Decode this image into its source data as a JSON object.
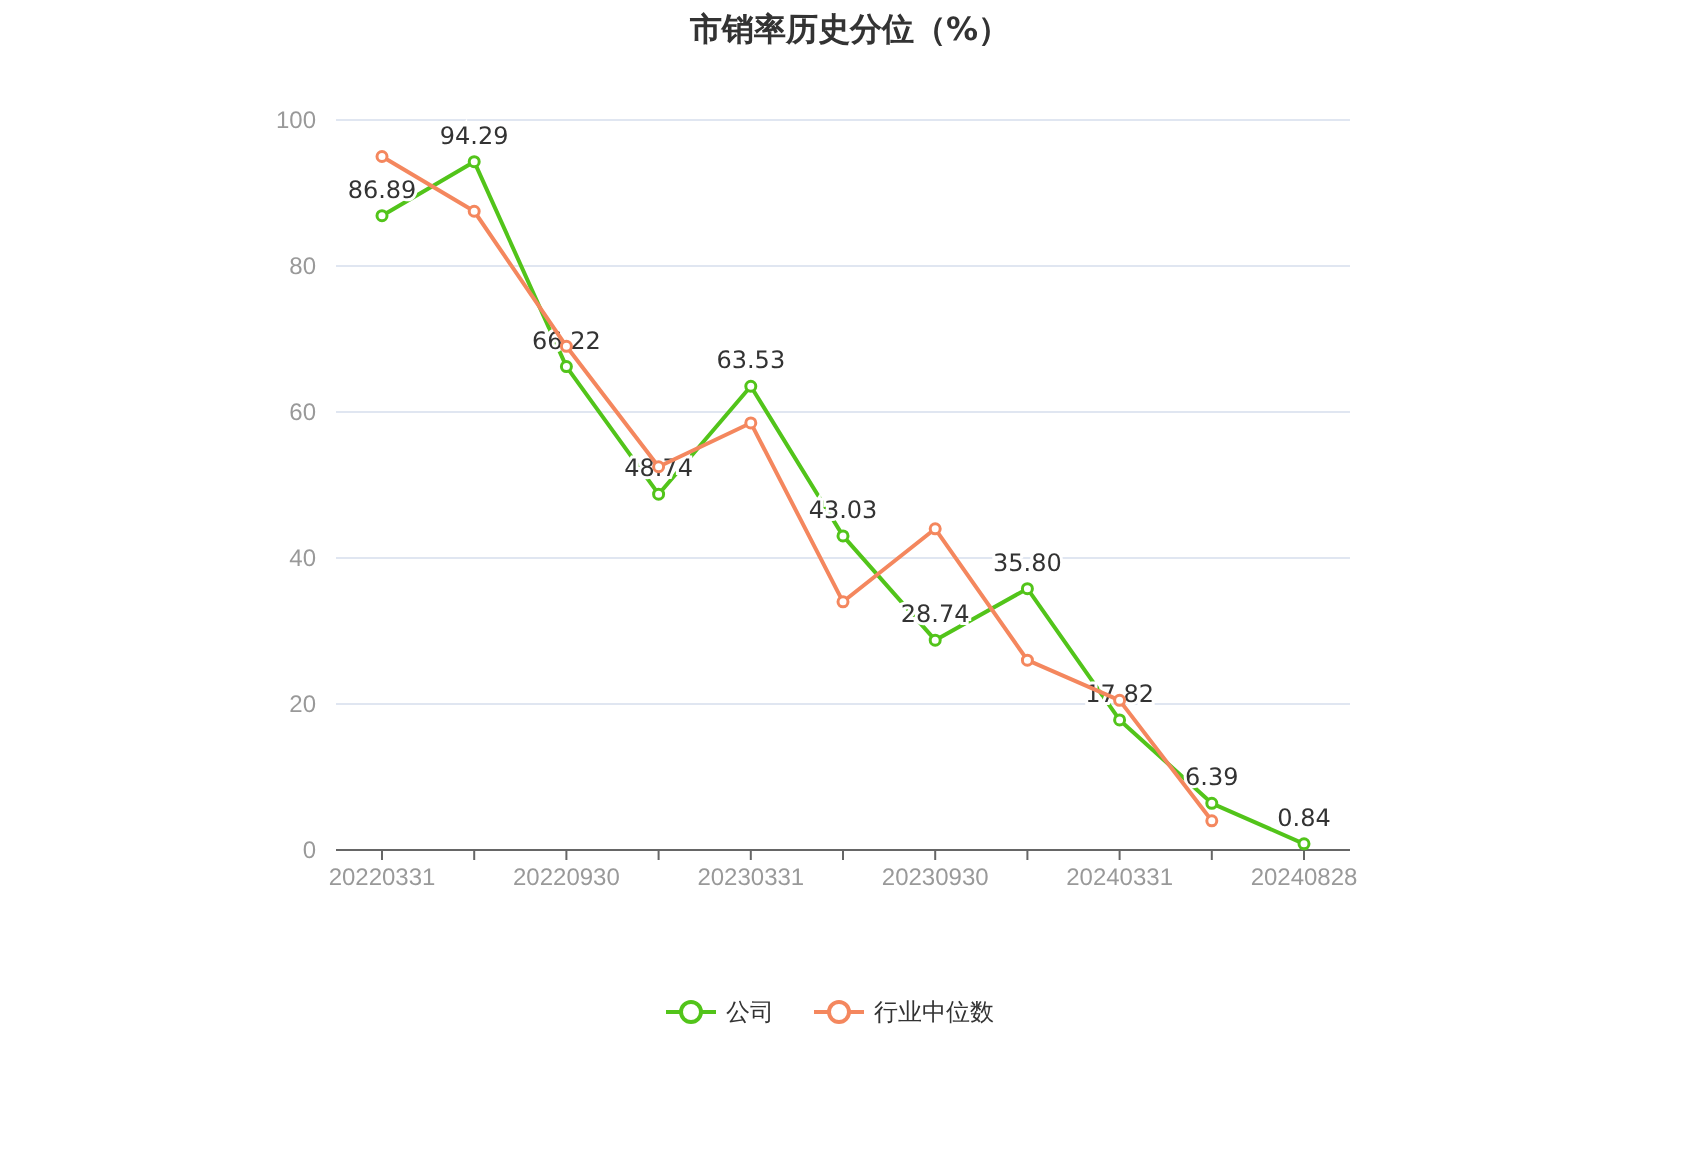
{
  "chart_data": {
    "type": "line",
    "title": "市销率历史分位（%）",
    "categories": [
      "20220331",
      null,
      "20220930",
      null,
      "20230331",
      null,
      "20230930",
      null,
      "20240331",
      null,
      "20240828"
    ],
    "series": [
      {
        "name": "公司",
        "color": "#52c41a",
        "values": [
          86.89,
          94.29,
          66.22,
          48.74,
          63.53,
          43.03,
          28.74,
          35.8,
          17.82,
          6.39,
          0.84
        ],
        "value_labels": [
          "86.89",
          "94.29",
          "66.22",
          "48.74",
          "63.53",
          "43.03",
          "28.74",
          "35.80",
          "17.82",
          "6.39",
          "0.84"
        ]
      },
      {
        "name": "行业中位数",
        "color": "#f4875e",
        "values": [
          95,
          87.5,
          69,
          52.5,
          58.5,
          34,
          44,
          26,
          20.5,
          4,
          null
        ]
      }
    ],
    "ylim": [
      0,
      100
    ],
    "yticks": [
      0,
      20,
      40,
      60,
      80,
      100
    ],
    "grid": "y",
    "legend": "bottom",
    "marker": "circle",
    "line_style": "solid"
  }
}
